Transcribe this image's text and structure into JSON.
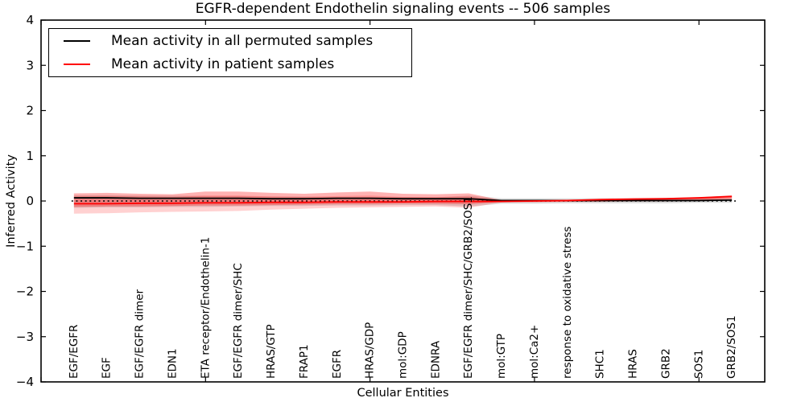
{
  "chart_data": {
    "type": "line",
    "title": "EGFR-dependent Endothelin signaling events -- 506 samples",
    "xlabel": "Cellular Entities",
    "ylabel": "Inferred Activity",
    "ylim": [
      -4,
      4
    ],
    "yticks": [
      -4,
      -3,
      -2,
      -1,
      0,
      1,
      2,
      3,
      4
    ],
    "xlim": [
      0,
      22
    ],
    "xticks": [
      0,
      5,
      10,
      15,
      20
    ],
    "grid": false,
    "legend_position": "upper left",
    "background_color": "#ffffff",
    "spine_color": "#000000",
    "categories": [
      "EGF/EGFR",
      "EGF",
      "EGF/EGFR dimer",
      "EDN1",
      "ETA receptor/Endothelin-1",
      "EGF/EGFR dimer/SHC",
      "HRAS/GTP",
      "FRAP1",
      "EGFR",
      "HRAS/GDP",
      "mol:GDP",
      "EDNRA",
      "EGF/EGFR dimer/SHC/GRB2/SOS1",
      "mol:GTP",
      "mol:Ca2+",
      "response to oxidative stress",
      "SHC1",
      "HRAS",
      "GRB2",
      "SOS1",
      "GRB2/SOS1"
    ],
    "series": [
      {
        "name": "Mean activity in all permuted samples",
        "color": "#000000",
        "style": "solid",
        "values": [
          0.07,
          0.07,
          0.06,
          0.06,
          0.06,
          0.06,
          0.05,
          0.05,
          0.06,
          0.06,
          0.05,
          0.05,
          0.05,
          0.01,
          0.01,
          0.01,
          0.01,
          0.01,
          0.01,
          0.01,
          0.02
        ]
      },
      {
        "name": "Mean activity in patient samples",
        "color": "#ff0000",
        "style": "solid",
        "values": [
          -0.06,
          -0.06,
          -0.05,
          -0.05,
          -0.04,
          -0.04,
          -0.03,
          -0.03,
          -0.02,
          -0.02,
          -0.02,
          -0.01,
          -0.01,
          -0.01,
          0.0,
          0.01,
          0.03,
          0.04,
          0.05,
          0.07,
          0.1
        ]
      }
    ],
    "bands": [
      {
        "name": "permuted-samples-std-band",
        "color": "#bbbbbb",
        "opacity": 0.5,
        "upper": [
          0.13,
          0.13,
          0.12,
          0.12,
          0.11,
          0.11,
          0.1,
          0.1,
          0.09,
          0.09,
          0.09,
          0.08,
          0.12,
          0.06,
          0.06,
          0.06,
          0.06,
          0.06,
          0.06,
          0.07,
          0.07
        ],
        "lower": [
          -0.15,
          -0.14,
          -0.14,
          -0.13,
          -0.13,
          -0.12,
          -0.11,
          -0.11,
          -0.1,
          -0.1,
          -0.09,
          -0.09,
          -0.12,
          -0.06,
          -0.06,
          -0.05,
          -0.05,
          -0.05,
          -0.05,
          -0.04,
          -0.04
        ]
      },
      {
        "name": "patient-samples-outer-band",
        "color": "#ff0000",
        "opacity": 0.18,
        "upper": [
          0.1,
          0.11,
          0.1,
          0.09,
          0.12,
          0.12,
          0.1,
          0.09,
          0.11,
          0.12,
          0.09,
          0.09,
          0.1,
          0.01,
          0.01,
          0.02,
          0.04,
          0.05,
          0.05,
          0.06,
          0.08
        ],
        "lower": [
          -0.28,
          -0.27,
          -0.25,
          -0.24,
          -0.23,
          -0.22,
          -0.19,
          -0.17,
          -0.15,
          -0.14,
          -0.13,
          -0.12,
          -0.15,
          -0.03,
          -0.03,
          -0.02,
          -0.02,
          -0.01,
          -0.01,
          0.0,
          0.02
        ]
      },
      {
        "name": "patient-samples-inner-band",
        "color": "#ff0000",
        "opacity": 0.3,
        "upper": [
          0.17,
          0.18,
          0.16,
          0.15,
          0.21,
          0.21,
          0.18,
          0.16,
          0.19,
          0.21,
          0.16,
          0.15,
          0.17,
          0.02,
          0.02,
          0.03,
          0.05,
          0.07,
          0.07,
          0.08,
          0.13
        ],
        "lower": [
          -0.13,
          -0.12,
          -0.12,
          -0.11,
          -0.1,
          -0.1,
          -0.09,
          -0.08,
          -0.07,
          -0.07,
          -0.06,
          -0.06,
          -0.07,
          -0.02,
          -0.02,
          -0.01,
          -0.01,
          0.0,
          0.0,
          0.01,
          0.05
        ]
      }
    ],
    "zero_line": {
      "y": 0,
      "color": "#000000",
      "style": "dotted"
    }
  }
}
